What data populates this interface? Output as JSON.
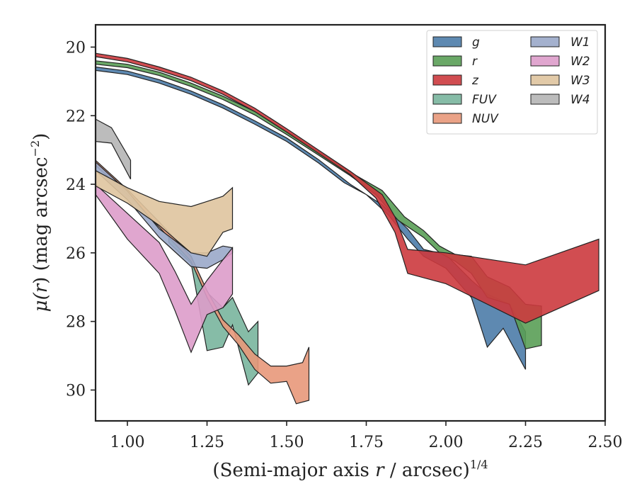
{
  "chart_data": {
    "type": "area",
    "xlabel_text": "(Semi-major axis ",
    "xlabel_var": "r",
    "xlabel_rest": " / arcsec)",
    "xlabel_sup": "1/4",
    "ylabel_pre": "μ(",
    "ylabel_var": "r",
    "ylabel_post": ") (mag arcsec",
    "ylabel_sup": "−2",
    "ylabel_close": ")",
    "xlim": [
      0.9,
      2.5
    ],
    "ylim": [
      30.9,
      19.35
    ],
    "y_inverted": true,
    "xticks": [
      1.0,
      1.25,
      1.5,
      1.75,
      2.0,
      2.25,
      2.5
    ],
    "xtick_labels": [
      "1.00",
      "1.25",
      "1.50",
      "1.75",
      "2.00",
      "2.25",
      "2.50"
    ],
    "yticks": [
      20,
      22,
      24,
      26,
      28,
      30
    ],
    "ytick_labels": [
      "20",
      "22",
      "24",
      "26",
      "28",
      "30"
    ],
    "legend_position": "top-right",
    "legend_columns": 2,
    "series": [
      {
        "name": "g",
        "color": "#4c7ca8",
        "upper": [
          [
            0.9,
            20.58
          ],
          [
            1.0,
            20.7
          ],
          [
            1.1,
            20.95
          ],
          [
            1.2,
            21.28
          ],
          [
            1.3,
            21.68
          ],
          [
            1.4,
            22.15
          ],
          [
            1.5,
            22.65
          ],
          [
            1.6,
            23.28
          ],
          [
            1.7,
            24.0
          ],
          [
            1.8,
            24.6
          ],
          [
            1.88,
            25.3
          ],
          [
            1.93,
            25.9
          ],
          [
            2.0,
            26.05
          ],
          [
            2.08,
            26.8
          ],
          [
            2.13,
            27.2
          ],
          [
            2.2,
            27.5
          ],
          [
            2.25,
            28.3
          ]
        ],
        "lower": [
          [
            0.9,
            20.68
          ],
          [
            1.0,
            20.8
          ],
          [
            1.1,
            21.05
          ],
          [
            1.2,
            21.38
          ],
          [
            1.3,
            21.78
          ],
          [
            1.4,
            22.25
          ],
          [
            1.5,
            22.75
          ],
          [
            1.6,
            23.38
          ],
          [
            1.68,
            23.95
          ],
          [
            1.75,
            24.3
          ],
          [
            1.82,
            24.9
          ],
          [
            1.88,
            25.6
          ],
          [
            1.93,
            26.1
          ],
          [
            2.0,
            26.45
          ],
          [
            2.08,
            27.3
          ],
          [
            2.13,
            28.75
          ],
          [
            2.18,
            28.2
          ],
          [
            2.25,
            29.4
          ]
        ]
      },
      {
        "name": "r",
        "color": "#5a9e57",
        "upper": [
          [
            0.9,
            20.4
          ],
          [
            1.0,
            20.5
          ],
          [
            1.1,
            20.73
          ],
          [
            1.2,
            21.05
          ],
          [
            1.3,
            21.43
          ],
          [
            1.4,
            21.88
          ],
          [
            1.5,
            22.45
          ],
          [
            1.6,
            23.05
          ],
          [
            1.7,
            23.65
          ],
          [
            1.8,
            24.18
          ],
          [
            1.87,
            24.95
          ],
          [
            1.93,
            25.35
          ],
          [
            1.98,
            25.8
          ],
          [
            2.03,
            26.05
          ],
          [
            2.08,
            26.1
          ],
          [
            2.13,
            26.7
          ],
          [
            2.2,
            27.0
          ],
          [
            2.25,
            27.5
          ],
          [
            2.3,
            27.55
          ]
        ],
        "lower": [
          [
            0.9,
            20.5
          ],
          [
            1.0,
            20.6
          ],
          [
            1.1,
            20.83
          ],
          [
            1.2,
            21.15
          ],
          [
            1.3,
            21.53
          ],
          [
            1.4,
            21.98
          ],
          [
            1.5,
            22.55
          ],
          [
            1.6,
            23.15
          ],
          [
            1.7,
            23.75
          ],
          [
            1.78,
            24.3
          ],
          [
            1.85,
            25.05
          ],
          [
            1.93,
            25.55
          ],
          [
            1.98,
            26.0
          ],
          [
            2.03,
            26.25
          ],
          [
            2.08,
            26.6
          ],
          [
            2.13,
            27.3
          ],
          [
            2.2,
            27.5
          ],
          [
            2.25,
            28.8
          ],
          [
            2.3,
            28.7
          ]
        ]
      },
      {
        "name": "z",
        "color": "#cc3a3e",
        "upper": [
          [
            0.9,
            20.18
          ],
          [
            1.0,
            20.33
          ],
          [
            1.1,
            20.58
          ],
          [
            1.2,
            20.88
          ],
          [
            1.3,
            21.28
          ],
          [
            1.4,
            21.78
          ],
          [
            1.5,
            22.38
          ],
          [
            1.6,
            23.0
          ],
          [
            1.7,
            23.62
          ],
          [
            1.8,
            24.3
          ],
          [
            1.84,
            24.95
          ],
          [
            1.88,
            25.9
          ],
          [
            2.0,
            26.0
          ],
          [
            2.25,
            26.35
          ],
          [
            2.48,
            25.6
          ]
        ],
        "lower": [
          [
            0.9,
            20.28
          ],
          [
            1.0,
            20.43
          ],
          [
            1.1,
            20.68
          ],
          [
            1.2,
            20.98
          ],
          [
            1.3,
            21.38
          ],
          [
            1.4,
            21.88
          ],
          [
            1.5,
            22.48
          ],
          [
            1.6,
            23.1
          ],
          [
            1.7,
            23.72
          ],
          [
            1.78,
            24.4
          ],
          [
            1.84,
            25.4
          ],
          [
            1.88,
            26.6
          ],
          [
            2.0,
            26.9
          ],
          [
            2.25,
            28.05
          ],
          [
            2.48,
            27.1
          ]
        ]
      },
      {
        "name": "FUV",
        "color": "#79b59d",
        "upper": [
          [
            1.13,
            25.5
          ],
          [
            1.2,
            26.1
          ],
          [
            1.25,
            27.15
          ],
          [
            1.3,
            27.6
          ],
          [
            1.33,
            27.3
          ],
          [
            1.38,
            28.3
          ],
          [
            1.41,
            28.0
          ]
        ],
        "lower": [
          [
            1.13,
            25.7
          ],
          [
            1.2,
            26.3
          ],
          [
            1.25,
            28.85
          ],
          [
            1.3,
            28.75
          ],
          [
            1.33,
            28.1
          ],
          [
            1.38,
            29.85
          ],
          [
            1.41,
            29.5
          ]
        ]
      },
      {
        "name": "NUV",
        "color": "#e8987a",
        "upper": [
          [
            0.9,
            23.3
          ],
          [
            1.0,
            24.15
          ],
          [
            1.1,
            25.1
          ],
          [
            1.2,
            26.1
          ],
          [
            1.25,
            27.1
          ],
          [
            1.3,
            27.95
          ],
          [
            1.35,
            28.4
          ],
          [
            1.4,
            28.95
          ],
          [
            1.45,
            29.3
          ],
          [
            1.5,
            29.3
          ],
          [
            1.55,
            29.2
          ],
          [
            1.57,
            28.75
          ]
        ],
        "lower": [
          [
            0.9,
            23.45
          ],
          [
            1.0,
            24.3
          ],
          [
            1.1,
            25.25
          ],
          [
            1.2,
            26.25
          ],
          [
            1.25,
            27.3
          ],
          [
            1.3,
            28.15
          ],
          [
            1.35,
            28.7
          ],
          [
            1.4,
            29.4
          ],
          [
            1.45,
            29.8
          ],
          [
            1.5,
            29.75
          ],
          [
            1.53,
            30.4
          ],
          [
            1.57,
            30.3
          ]
        ]
      },
      {
        "name": "W1",
        "color": "#9aa9c9",
        "upper": [
          [
            0.9,
            23.35
          ],
          [
            1.0,
            24.2
          ],
          [
            1.1,
            25.3
          ],
          [
            1.2,
            26.0
          ],
          [
            1.25,
            26.0
          ],
          [
            1.3,
            25.8
          ],
          [
            1.33,
            25.85
          ]
        ],
        "lower": [
          [
            0.9,
            23.6
          ],
          [
            1.0,
            24.45
          ],
          [
            1.1,
            25.55
          ],
          [
            1.2,
            26.4
          ],
          [
            1.25,
            26.45
          ],
          [
            1.3,
            26.2
          ],
          [
            1.33,
            26.0
          ]
        ]
      },
      {
        "name": "W2",
        "color": "#dd9cca",
        "upper": [
          [
            0.9,
            24.0
          ],
          [
            1.0,
            24.85
          ],
          [
            1.1,
            25.7
          ],
          [
            1.15,
            26.55
          ],
          [
            1.2,
            27.5
          ],
          [
            1.25,
            26.8
          ],
          [
            1.3,
            26.2
          ],
          [
            1.33,
            25.85
          ]
        ],
        "lower": [
          [
            0.9,
            24.3
          ],
          [
            1.0,
            25.6
          ],
          [
            1.1,
            26.6
          ],
          [
            1.15,
            27.7
          ],
          [
            1.2,
            28.9
          ],
          [
            1.25,
            27.8
          ],
          [
            1.3,
            27.6
          ],
          [
            1.33,
            27.2
          ]
        ]
      },
      {
        "name": "W3",
        "color": "#dfc49f",
        "upper": [
          [
            0.9,
            23.6
          ],
          [
            1.0,
            24.1
          ],
          [
            1.1,
            24.5
          ],
          [
            1.2,
            24.65
          ],
          [
            1.25,
            24.5
          ],
          [
            1.3,
            24.35
          ],
          [
            1.33,
            24.1
          ]
        ],
        "lower": [
          [
            0.9,
            24.05
          ],
          [
            1.0,
            24.55
          ],
          [
            1.1,
            25.2
          ],
          [
            1.2,
            26.0
          ],
          [
            1.25,
            26.1
          ],
          [
            1.3,
            25.4
          ],
          [
            1.33,
            25.3
          ]
        ]
      },
      {
        "name": "W4",
        "color": "#b5b5b5",
        "upper": [
          [
            0.9,
            22.1
          ],
          [
            0.95,
            22.35
          ],
          [
            1.01,
            23.3
          ]
        ],
        "lower": [
          [
            0.9,
            22.75
          ],
          [
            0.95,
            22.8
          ],
          [
            1.01,
            23.85
          ]
        ]
      }
    ]
  }
}
